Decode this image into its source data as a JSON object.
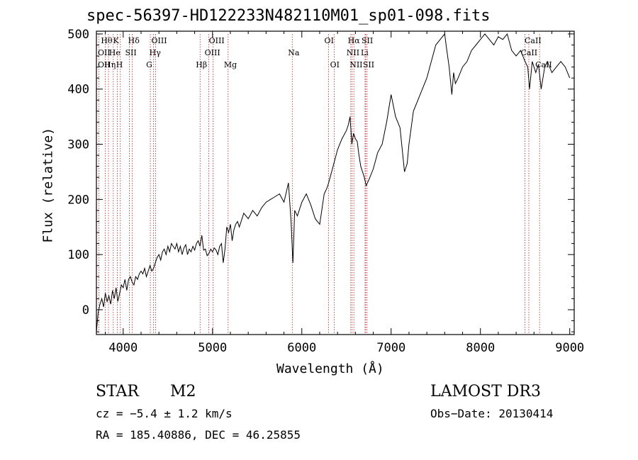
{
  "chart_data": {
    "type": "line",
    "title": "spec-56397-HD122233N482110M01_sp01-098.fits",
    "xlabel": "Wavelength (Å)",
    "ylabel": "Flux (relative)",
    "xlim": [
      3700,
      9050
    ],
    "ylim": [
      -45,
      505
    ],
    "xticks": [
      4000,
      5000,
      6000,
      7000,
      8000,
      9000
    ],
    "yticks": [
      0,
      100,
      200,
      300,
      400,
      500
    ],
    "series": [
      {
        "name": "flux",
        "x": [
          3700,
          3720,
          3740,
          3760,
          3780,
          3800,
          3820,
          3840,
          3860,
          3880,
          3900,
          3920,
          3940,
          3960,
          3980,
          4000,
          4020,
          4040,
          4060,
          4080,
          4100,
          4120,
          4140,
          4160,
          4180,
          4200,
          4220,
          4240,
          4260,
          4280,
          4300,
          4320,
          4340,
          4360,
          4380,
          4400,
          4420,
          4440,
          4460,
          4480,
          4500,
          4520,
          4540,
          4560,
          4580,
          4600,
          4620,
          4640,
          4660,
          4680,
          4700,
          4720,
          4740,
          4760,
          4780,
          4800,
          4820,
          4840,
          4860,
          4880,
          4900,
          4920,
          4940,
          4960,
          4980,
          5000,
          5020,
          5040,
          5060,
          5080,
          5100,
          5120,
          5140,
          5160,
          5180,
          5200,
          5220,
          5240,
          5260,
          5280,
          5300,
          5350,
          5400,
          5450,
          5500,
          5550,
          5600,
          5650,
          5700,
          5750,
          5800,
          5850,
          5880,
          5900,
          5920,
          5950,
          6000,
          6050,
          6100,
          6150,
          6200,
          6250,
          6280,
          6300,
          6350,
          6400,
          6450,
          6500,
          6520,
          6540,
          6560,
          6580,
          6600,
          6620,
          6640,
          6660,
          6680,
          6700,
          6720,
          6750,
          6800,
          6850,
          6900,
          6950,
          7000,
          7050,
          7100,
          7150,
          7180,
          7200,
          7250,
          7300,
          7350,
          7400,
          7450,
          7500,
          7550,
          7600,
          7620,
          7650,
          7680,
          7700,
          7720,
          7750,
          7800,
          7850,
          7900,
          7950,
          8000,
          8050,
          8100,
          8150,
          8200,
          8250,
          8300,
          8350,
          8400,
          8450,
          8500,
          8530,
          8550,
          8580,
          8620,
          8650,
          8680,
          8720,
          8750,
          8800,
          8850,
          8900,
          8950,
          9000
        ],
        "y": [
          -40,
          -5,
          10,
          20,
          5,
          30,
          15,
          25,
          10,
          35,
          20,
          40,
          15,
          30,
          45,
          40,
          55,
          35,
          55,
          60,
          50,
          45,
          60,
          55,
          65,
          70,
          65,
          75,
          60,
          70,
          80,
          70,
          75,
          85,
          95,
          100,
          90,
          105,
          110,
          100,
          115,
          105,
          120,
          115,
          110,
          120,
          105,
          115,
          100,
          112,
          118,
          100,
          110,
          105,
          115,
          108,
          120,
          125,
          115,
          135,
          108,
          110,
          98,
          102,
          110,
          105,
          112,
          108,
          100,
          115,
          120,
          85,
          110,
          150,
          140,
          155,
          125,
          145,
          155,
          160,
          150,
          175,
          165,
          180,
          170,
          185,
          195,
          200,
          205,
          210,
          195,
          230,
          160,
          85,
          180,
          170,
          195,
          210,
          190,
          165,
          155,
          210,
          220,
          230,
          260,
          290,
          310,
          325,
          335,
          350,
          300,
          320,
          310,
          305,
          280,
          260,
          250,
          240,
          225,
          235,
          255,
          285,
          300,
          340,
          390,
          350,
          330,
          250,
          265,
          300,
          360,
          380,
          400,
          420,
          450,
          480,
          490,
          500,
          475,
          440,
          390,
          430,
          410,
          420,
          440,
          450,
          470,
          480,
          490,
          500,
          490,
          480,
          495,
          490,
          500,
          470,
          460,
          470,
          450,
          440,
          400,
          450,
          430,
          445,
          400,
          440,
          450,
          430,
          440,
          450,
          440,
          420
        ]
      }
    ],
    "line_labels": [
      {
        "text": "Hθ",
        "row": 1,
        "x": 3798
      },
      {
        "text": "K",
        "row": 1,
        "x": 3934
      },
      {
        "text": "Hδ",
        "row": 1,
        "x": 4102
      },
      {
        "text": "OIII",
        "row": 1,
        "x": 4363
      },
      {
        "text": "OIII",
        "row": 1,
        "x": 5007
      },
      {
        "text": "OI",
        "row": 1,
        "x": 6300
      },
      {
        "text": "Hα",
        "row": 1,
        "x": 6563
      },
      {
        "text": "SII",
        "row": 1,
        "x": 6716
      },
      {
        "text": "CaII",
        "row": 1,
        "x": 8542
      },
      {
        "text": "OII",
        "row": 2,
        "x": 3727
      },
      {
        "text": "He",
        "row": 2,
        "x": 3889
      },
      {
        "text": "SII",
        "row": 2,
        "x": 4069
      },
      {
        "text": "Hγ",
        "row": 2,
        "x": 4340
      },
      {
        "text": "OIII",
        "row": 2,
        "x": 4959
      },
      {
        "text": "Na",
        "row": 2,
        "x": 5893
      },
      {
        "text": "NII",
        "row": 2,
        "x": 6548
      },
      {
        "text": "Li",
        "row": 2,
        "x": 6708
      },
      {
        "text": "CaII",
        "row": 2,
        "x": 8498
      },
      {
        "text": "OII",
        "row": 3,
        "x": 3727
      },
      {
        "text": "Hη",
        "row": 3,
        "x": 3835
      },
      {
        "text": "H",
        "row": 3,
        "x": 3968
      },
      {
        "text": "G",
        "row": 3,
        "x": 4304
      },
      {
        "text": "Hβ",
        "row": 3,
        "x": 4861
      },
      {
        "text": "Mg",
        "row": 3,
        "x": 5175
      },
      {
        "text": "OI",
        "row": 3,
        "x": 6364
      },
      {
        "text": "NII",
        "row": 3,
        "x": 6583
      },
      {
        "text": "SII",
        "row": 3,
        "x": 6731
      },
      {
        "text": "CaII",
        "row": 3,
        "x": 8662
      }
    ],
    "line_markers": [
      3727,
      3798,
      3835,
      3889,
      3934,
      3968,
      4069,
      4102,
      4304,
      4340,
      4363,
      4861,
      4959,
      5007,
      5175,
      5893,
      6300,
      6364,
      6548,
      6563,
      6583,
      6708,
      6716,
      6731,
      8498,
      8542,
      8662
    ]
  },
  "info": {
    "object_class": "STAR",
    "subclass": "M2",
    "survey": "LAMOST DR3",
    "cz": "cz = −5.4 ± 1.2 km/s",
    "obs_date": "Obs−Date: 20130414",
    "coords": "RA = 185.40886, DEC =  46.25855"
  }
}
